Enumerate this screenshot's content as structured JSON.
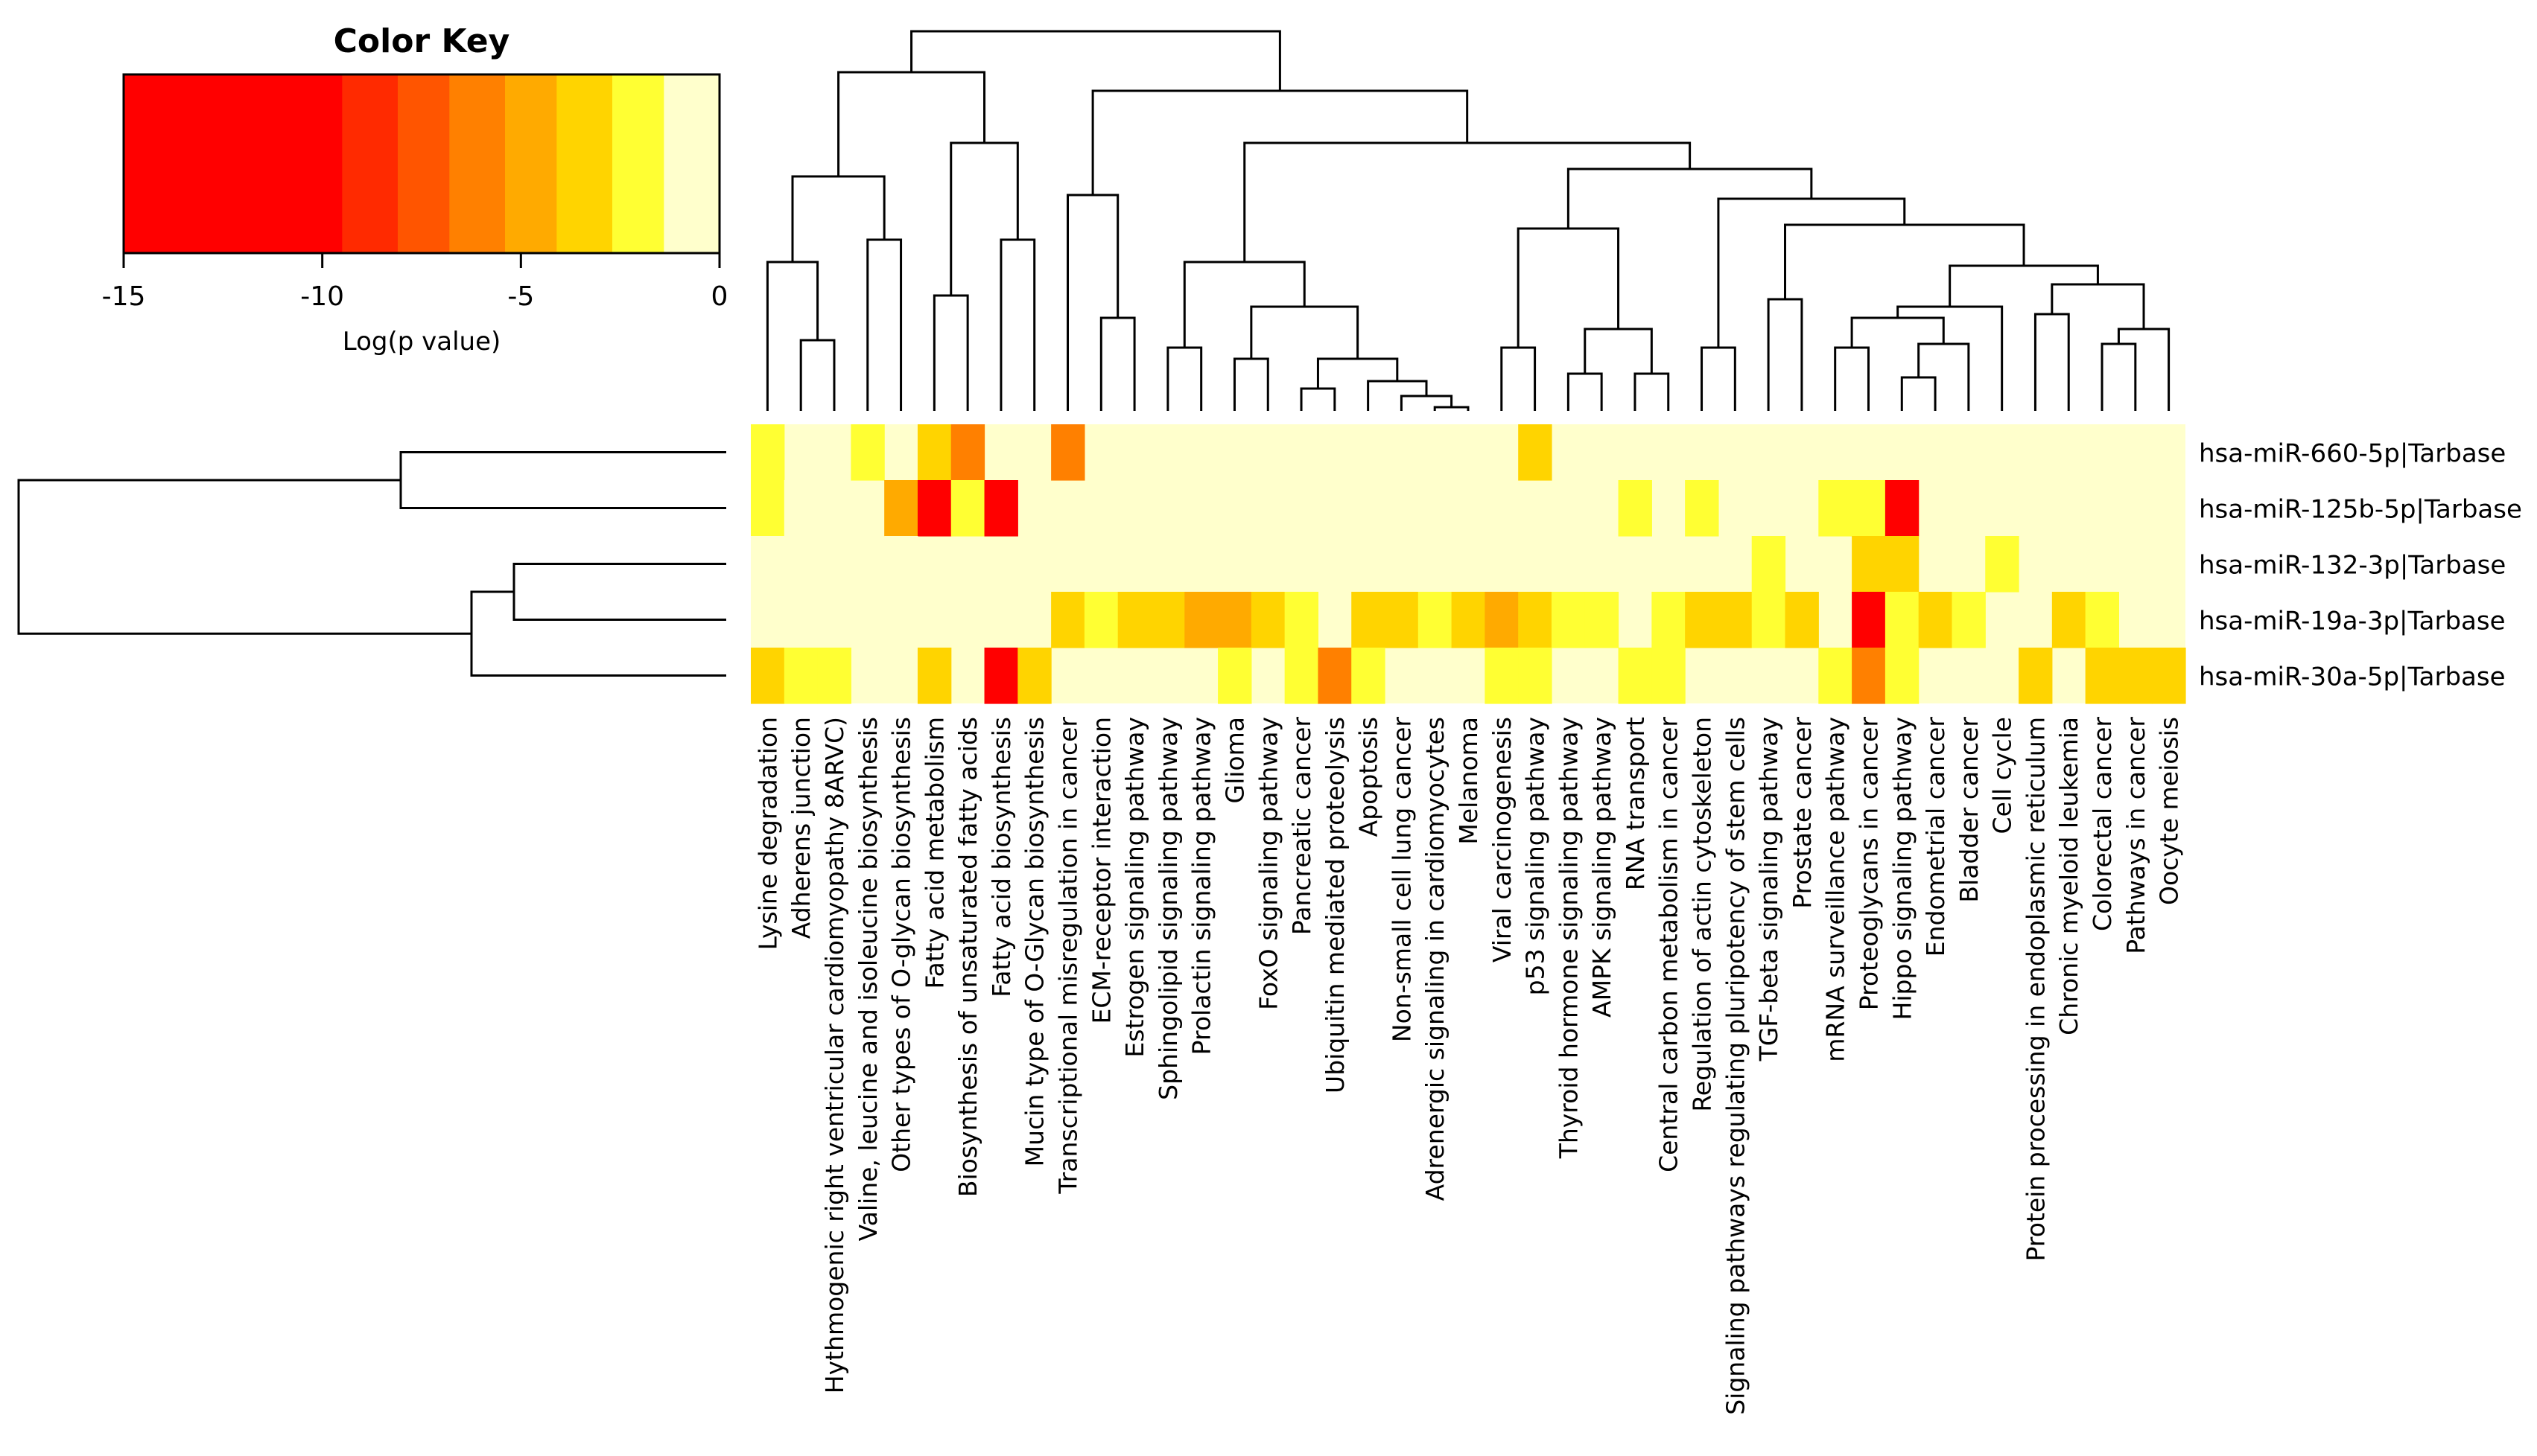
{
  "chart_data": {
    "type": "heatmap",
    "title": "",
    "color_key": {
      "title": "Color Key",
      "xlabel": "Log(p value)",
      "ticks": [
        -15,
        -10,
        -5,
        0
      ],
      "range": [
        -15,
        0
      ],
      "breaks": [
        -15,
        -9.5,
        -8.1,
        -6.8,
        -5.4,
        -4.1,
        -2.7,
        -1.4,
        0
      ],
      "colors": [
        "#ff0000",
        "#ff2a00",
        "#ff5500",
        "#ff8000",
        "#ffaa00",
        "#ffd400",
        "#ffff33",
        "#ffffcc"
      ]
    },
    "columns": [
      "Lysine degradation",
      "Adherens junction",
      "Hythmogenic right ventricular cardiomyopathy 8ARVC)",
      "Valine, leucine and isoleucine biosynthesis",
      "Other types of O-glycan biosynthesis",
      "Fatty acid metabolism",
      "Biosynthesis of unsaturated fatty acids",
      "Fatty acid biosynthesis",
      "Mucin type of O-Glycan biosynthesis",
      "Transcriptional misregulation in cancer",
      "ECM-receptor interaction",
      "Estrogen signaling pathway",
      "Sphingolipid signaling pathway",
      "Prolactin signaling pathway",
      "Glioma",
      "FoxO signaling pathway",
      "Pancreatic cancer",
      "Ubiquitin mediated proteolysis",
      "Apoptosis",
      "Non-small cell lung cancer",
      "Adrenergic signaling in cardiomyocytes",
      "Melanoma",
      "Viral carcinogenesis",
      "p53 signaling pathway",
      "Thyroid hormone signaling pathway",
      "AMPK signaling pathway",
      "RNA transport",
      "Central carbon metabolism in cancer",
      "Regulation of actin cytoskeleton",
      "Signaling pathways regulating pluripotency of stem cells",
      "TGF-beta signaling pathway",
      "Prostate cancer",
      "mRNA surveillance pathway",
      "Proteoglycans in cancer",
      "Hippo signaling pathway",
      "Endometrial cancer",
      "Bladder cancer",
      "Cell cycle",
      "Protein processing in endoplasmic reticulum",
      "Chronic myeloid leukemia",
      "Colorectal cancer",
      "Pathways in cancer",
      "Oocyte meiosis"
    ],
    "rows": [
      "hsa-miR-660-5p|Tarbase",
      "hsa-miR-125b-5p|Tarbase",
      "hsa-miR-132-3p|Tarbase",
      "hsa-miR-19a-3p|Tarbase",
      "hsa-miR-30a-5p|Tarbase"
    ],
    "values": [
      [
        -2,
        0,
        0,
        -2,
        0,
        -3,
        -6,
        0,
        0,
        -6,
        0,
        0,
        0,
        0,
        0,
        0,
        0,
        0,
        0,
        0,
        0,
        0,
        0,
        -4,
        0,
        0,
        0,
        0,
        0,
        0,
        0,
        0,
        0,
        0,
        0,
        0,
        0,
        0,
        0,
        0,
        0,
        0,
        0
      ],
      [
        -2,
        -1,
        0,
        0,
        -5,
        -15,
        -2,
        -15,
        0,
        0,
        0,
        0,
        0,
        0,
        0,
        0,
        0,
        0,
        0,
        0,
        0,
        0,
        0,
        0,
        0,
        0,
        -2,
        0,
        -2,
        0,
        0,
        0,
        -2,
        -2,
        -10,
        0,
        0,
        0,
        0,
        0,
        0,
        0,
        0
      ],
      [
        -1,
        0,
        -1,
        0,
        -1,
        0,
        0,
        0,
        0,
        0,
        0,
        0,
        0,
        0,
        0,
        0,
        0,
        0,
        0,
        0,
        0,
        0,
        0,
        0,
        0,
        0,
        0,
        0,
        0,
        0,
        -2,
        0,
        0,
        -3,
        -3,
        0,
        0,
        -2,
        0,
        0,
        0,
        0,
        0
      ],
      [
        0,
        0,
        0,
        0,
        0,
        0,
        0,
        0,
        0,
        -3,
        -2,
        -4,
        -4,
        -5,
        -5,
        -4,
        -2,
        0,
        -3,
        -4,
        -2,
        -4,
        -5,
        -3,
        -2,
        -2,
        0,
        -2,
        -3,
        -4,
        -2,
        -4,
        0,
        -15,
        -2,
        -3,
        -2,
        0,
        0,
        -3,
        -2,
        0,
        0
      ],
      [
        -4,
        -2,
        -2,
        0,
        0,
        -3,
        0,
        -15,
        -4,
        0,
        0,
        0,
        0,
        0,
        -2,
        0,
        -2,
        -6,
        -2,
        0,
        0,
        0,
        -2,
        -2,
        0,
        0,
        -2,
        -2,
        0,
        0,
        0,
        0,
        -2,
        -6,
        -2,
        0,
        0,
        0,
        -4,
        0,
        -3,
        -4,
        -4
      ]
    ],
    "row_order_note": "leaves of row dendrogram top-to-bottom",
    "grid": false
  }
}
